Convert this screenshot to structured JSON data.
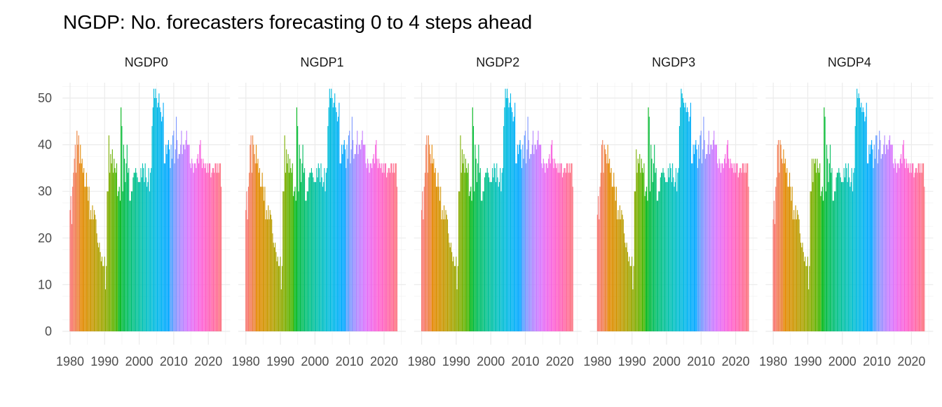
{
  "chart_data": {
    "type": "bar",
    "title": "NGDP: No. forecasters forecasting 0 to 4 steps ahead",
    "xlabel": "",
    "ylabel": "",
    "ylim": [
      0,
      52
    ],
    "xlim": [
      1980,
      2024
    ],
    "frequency": "quarterly",
    "start": "1980Q1",
    "grid": true,
    "legend": "none",
    "fill": "by year (hue palette)",
    "x_ticks": [
      "1980",
      "1990",
      "2000",
      "2010",
      "2020"
    ],
    "y_ticks": [
      "0",
      "10",
      "20",
      "30",
      "40",
      "50"
    ],
    "panels": [
      {
        "name": "NGDP0",
        "values": [
          26,
          29,
          23,
          31,
          34,
          37,
          40,
          34,
          43,
          40,
          42,
          36,
          40,
          36,
          37,
          34,
          35,
          31,
          31,
          34,
          31,
          28,
          31,
          24,
          26,
          24,
          27,
          24,
          26,
          25,
          24,
          21,
          19,
          18,
          19,
          17,
          15,
          16,
          14,
          14,
          16,
          9,
          14,
          30,
          30,
          42,
          34,
          38,
          36,
          39,
          34,
          37,
          35,
          34,
          36,
          29,
          30,
          31,
          28,
          48,
          44,
          30,
          40,
          37,
          32,
          36,
          40,
          34,
          35,
          28,
          28,
          30,
          30,
          33,
          34,
          34,
          35,
          34,
          33,
          32,
          32,
          32,
          35,
          33,
          36,
          35,
          32,
          36,
          33,
          31,
          32,
          35,
          30,
          34,
          35,
          44,
          48,
          52,
          50,
          52,
          50,
          48,
          49,
          51,
          48,
          47,
          45,
          46,
          49,
          36,
          36,
          40,
          38,
          40,
          41,
          39,
          35,
          40,
          37,
          42,
          43,
          36,
          39,
          46,
          41,
          37,
          38,
          38,
          40,
          43,
          38,
          40,
          40,
          39,
          41,
          43,
          40,
          40,
          40,
          36,
          35,
          37,
          36,
          34,
          36,
          36,
          35,
          37,
          38,
          36,
          40,
          41,
          37,
          35,
          37,
          36,
          35,
          36,
          34,
          36,
          34,
          36,
          36,
          33,
          34,
          35,
          35,
          34,
          36,
          36,
          34,
          36,
          34,
          36,
          36,
          31
        ]
      },
      {
        "name": "NGDP1",
        "values": [
          26,
          30,
          24,
          31,
          34,
          40,
          42,
          34,
          42,
          40,
          38,
          36,
          40,
          36,
          37,
          34,
          35,
          31,
          31,
          34,
          31,
          28,
          31,
          24,
          26,
          24,
          27,
          24,
          26,
          25,
          24,
          21,
          19,
          18,
          19,
          17,
          15,
          16,
          14,
          14,
          16,
          9,
          14,
          30,
          30,
          42,
          34,
          39,
          36,
          38,
          34,
          37,
          35,
          34,
          36,
          29,
          30,
          31,
          28,
          48,
          44,
          30,
          40,
          37,
          32,
          36,
          40,
          34,
          35,
          28,
          28,
          30,
          30,
          33,
          34,
          34,
          35,
          34,
          33,
          32,
          32,
          32,
          35,
          33,
          36,
          35,
          32,
          36,
          33,
          31,
          32,
          35,
          30,
          34,
          35,
          44,
          48,
          52,
          50,
          52,
          50,
          48,
          49,
          51,
          48,
          47,
          45,
          46,
          49,
          36,
          36,
          40,
          38,
          40,
          41,
          39,
          35,
          40,
          37,
          42,
          43,
          36,
          39,
          46,
          41,
          37,
          38,
          38,
          40,
          43,
          38,
          40,
          40,
          39,
          41,
          43,
          40,
          40,
          40,
          36,
          35,
          37,
          36,
          34,
          36,
          36,
          35,
          37,
          38,
          36,
          40,
          41,
          37,
          35,
          37,
          36,
          35,
          36,
          34,
          36,
          34,
          36,
          36,
          33,
          34,
          35,
          35,
          34,
          36,
          36,
          34,
          36,
          34,
          36,
          36,
          31
        ]
      },
      {
        "name": "NGDP2",
        "values": [
          26,
          30,
          24,
          31,
          34,
          40,
          42,
          34,
          42,
          40,
          38,
          36,
          40,
          36,
          37,
          34,
          35,
          31,
          31,
          34,
          31,
          28,
          31,
          24,
          26,
          24,
          27,
          24,
          26,
          25,
          24,
          21,
          19,
          18,
          19,
          17,
          15,
          16,
          14,
          14,
          16,
          9,
          14,
          30,
          30,
          42,
          34,
          39,
          36,
          38,
          34,
          37,
          35,
          34,
          36,
          29,
          30,
          31,
          28,
          48,
          44,
          30,
          40,
          37,
          32,
          36,
          40,
          34,
          35,
          28,
          28,
          30,
          30,
          33,
          34,
          34,
          35,
          34,
          33,
          32,
          32,
          32,
          35,
          33,
          36,
          35,
          32,
          36,
          33,
          31,
          32,
          35,
          30,
          34,
          35,
          44,
          48,
          52,
          50,
          52,
          50,
          48,
          49,
          51,
          48,
          47,
          45,
          46,
          49,
          36,
          36,
          40,
          38,
          40,
          41,
          39,
          35,
          40,
          37,
          42,
          43,
          36,
          39,
          46,
          41,
          37,
          38,
          38,
          40,
          43,
          38,
          40,
          40,
          39,
          41,
          43,
          40,
          40,
          40,
          36,
          35,
          37,
          36,
          34,
          36,
          36,
          35,
          37,
          38,
          36,
          40,
          41,
          37,
          35,
          37,
          36,
          35,
          36,
          34,
          36,
          34,
          36,
          36,
          33,
          34,
          35,
          35,
          34,
          36,
          36,
          34,
          36,
          34,
          36,
          36,
          31
        ]
      },
      {
        "name": "NGDP3",
        "values": [
          25,
          29,
          24,
          31,
          34,
          40,
          41,
          34,
          40,
          39,
          38,
          36,
          40,
          36,
          37,
          34,
          35,
          31,
          31,
          34,
          31,
          28,
          31,
          24,
          26,
          24,
          27,
          24,
          26,
          25,
          24,
          21,
          19,
          18,
          19,
          17,
          15,
          16,
          14,
          14,
          16,
          9,
          14,
          30,
          30,
          39,
          34,
          37,
          36,
          38,
          34,
          37,
          35,
          34,
          36,
          29,
          30,
          31,
          28,
          48,
          46,
          30,
          40,
          37,
          32,
          36,
          40,
          34,
          35,
          28,
          28,
          30,
          30,
          33,
          34,
          34,
          35,
          34,
          33,
          32,
          32,
          32,
          35,
          33,
          36,
          35,
          32,
          36,
          33,
          31,
          32,
          35,
          30,
          34,
          35,
          44,
          48,
          52,
          51,
          50,
          49,
          48,
          49,
          47,
          48,
          47,
          45,
          46,
          49,
          36,
          36,
          40,
          38,
          40,
          41,
          39,
          35,
          40,
          37,
          42,
          43,
          36,
          39,
          46,
          41,
          37,
          38,
          38,
          40,
          43,
          38,
          40,
          40,
          39,
          41,
          43,
          40,
          40,
          40,
          36,
          35,
          37,
          36,
          34,
          36,
          36,
          35,
          37,
          38,
          36,
          40,
          41,
          37,
          35,
          37,
          36,
          35,
          36,
          34,
          36,
          34,
          36,
          36,
          33,
          34,
          35,
          35,
          34,
          36,
          36,
          34,
          36,
          34,
          36,
          36,
          31
        ]
      },
      {
        "name": "NGDP4",
        "values": [
          24,
          28,
          23,
          31,
          33,
          40,
          41,
          34,
          41,
          40,
          37,
          36,
          39,
          36,
          37,
          34,
          35,
          31,
          31,
          34,
          31,
          28,
          31,
          24,
          26,
          24,
          27,
          24,
          26,
          25,
          24,
          21,
          19,
          18,
          19,
          17,
          15,
          16,
          14,
          14,
          16,
          9,
          14,
          30,
          30,
          37,
          32,
          37,
          36,
          37,
          34,
          37,
          35,
          34,
          36,
          29,
          30,
          31,
          28,
          48,
          46,
          30,
          40,
          37,
          32,
          36,
          40,
          34,
          35,
          28,
          28,
          30,
          30,
          33,
          34,
          34,
          35,
          34,
          33,
          32,
          32,
          32,
          35,
          33,
          36,
          35,
          32,
          36,
          33,
          31,
          32,
          35,
          30,
          34,
          35,
          44,
          48,
          52,
          50,
          51,
          50,
          48,
          49,
          47,
          48,
          47,
          45,
          46,
          49,
          36,
          36,
          40,
          38,
          40,
          41,
          39,
          35,
          40,
          37,
          42,
          42,
          36,
          39,
          43,
          41,
          37,
          38,
          38,
          40,
          42,
          38,
          40,
          40,
          39,
          41,
          42,
          40,
          40,
          40,
          36,
          35,
          37,
          36,
          34,
          36,
          36,
          35,
          37,
          38,
          36,
          40,
          41,
          37,
          35,
          37,
          36,
          35,
          36,
          34,
          36,
          34,
          36,
          36,
          33,
          34,
          35,
          35,
          34,
          36,
          36,
          34,
          36,
          34,
          36,
          36,
          31
        ]
      }
    ]
  }
}
